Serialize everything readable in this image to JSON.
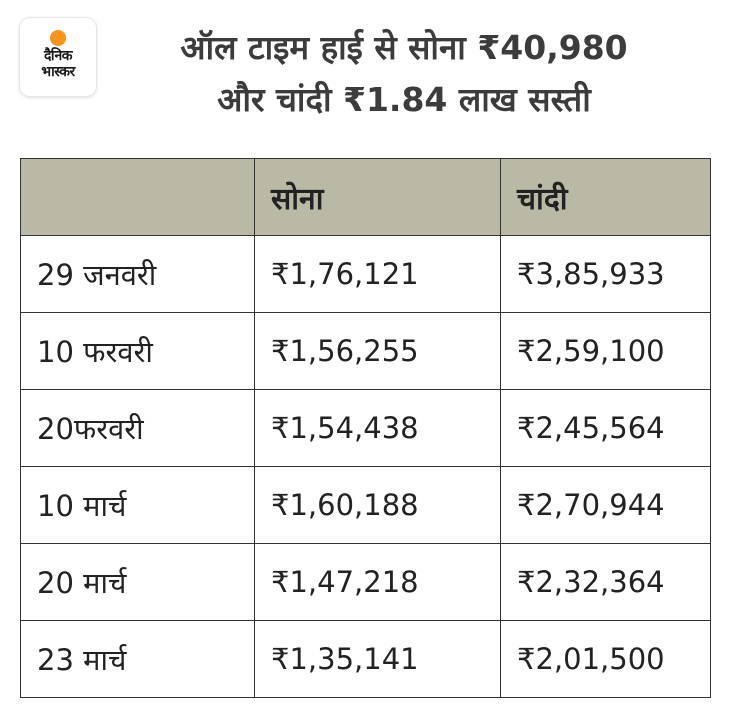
{
  "brand": {
    "logo_line1": "दैनिक",
    "logo_line2": "भास्कर",
    "logo_accent_color": "#f7941d"
  },
  "headline": {
    "line1": "ऑल टाइम हाई से सोना ₹40,980",
    "line2": "और चांदी ₹1.84 लाख सस्ती"
  },
  "table": {
    "header_color": "#b9b9a6",
    "columns": [
      "",
      "सोना",
      "चांदी"
    ],
    "rows": [
      {
        "date": "29 जनवरी",
        "gold": "₹1,76,121",
        "silver": "₹3,85,933"
      },
      {
        "date": "10 फरवरी",
        "gold": "₹1,56,255",
        "silver": "₹2,59,100"
      },
      {
        "date": "20फरवरी",
        "gold": "₹1,54,438",
        "silver": "₹2,45,564"
      },
      {
        "date": "10 मार्च",
        "gold": "₹1,60,188",
        "silver": "₹2,70,944"
      },
      {
        "date": "20 मार्च",
        "gold": "₹1,47,218",
        "silver": "₹2,32,364"
      },
      {
        "date": "23 मार्च",
        "gold": "₹1,35,141",
        "silver": "₹2,01,500"
      }
    ]
  }
}
